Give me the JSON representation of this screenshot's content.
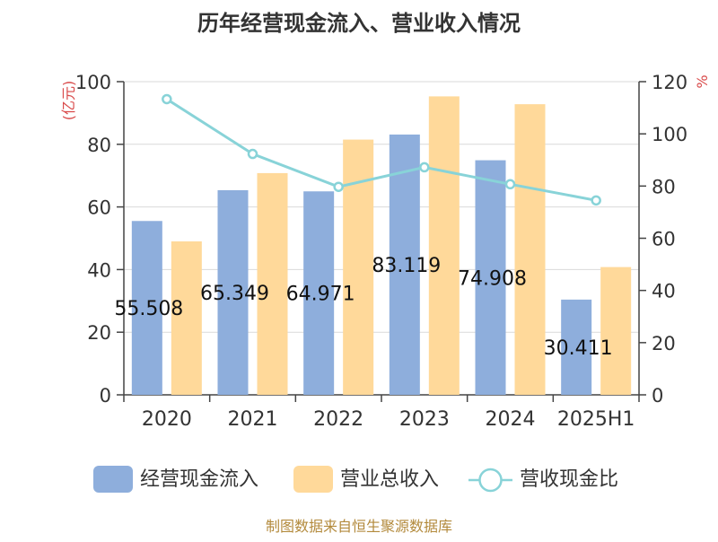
{
  "chart_data": {
    "type": "bar",
    "title": "历年经营现金流入、营业收入情况",
    "categories": [
      "2020",
      "2021",
      "2022",
      "2023",
      "2024",
      "2025H1"
    ],
    "series": [
      {
        "name": "经营现金流入",
        "type": "bar",
        "axis": "left",
        "color": "#8eaedc",
        "values": [
          55.508,
          65.349,
          64.971,
          83.119,
          74.908,
          30.411
        ],
        "labels": [
          "55.508",
          "65.349",
          "64.971",
          "83.119",
          "74.908",
          "30.411"
        ]
      },
      {
        "name": "营业总收入",
        "type": "bar",
        "axis": "left",
        "color": "#ffd99a",
        "values": [
          49,
          70.8,
          81.5,
          95.3,
          92.8,
          40.8
        ]
      },
      {
        "name": "营收现金比",
        "type": "line",
        "axis": "right",
        "color": "#88d3d8",
        "values": [
          113.3,
          92.3,
          79.7,
          87.2,
          80.7,
          74.5
        ]
      }
    ],
    "y_left": {
      "label": "(亿元)",
      "min": 0,
      "max": 100,
      "ticks": [
        0,
        20,
        40,
        60,
        80,
        100
      ]
    },
    "y_right": {
      "label": "%",
      "min": 0,
      "max": 120,
      "ticks": [
        0,
        20,
        40,
        60,
        80,
        100,
        120
      ]
    },
    "grid": true,
    "legend_position": "bottom",
    "source_text": "制图数据来自恒生聚源数据库"
  }
}
